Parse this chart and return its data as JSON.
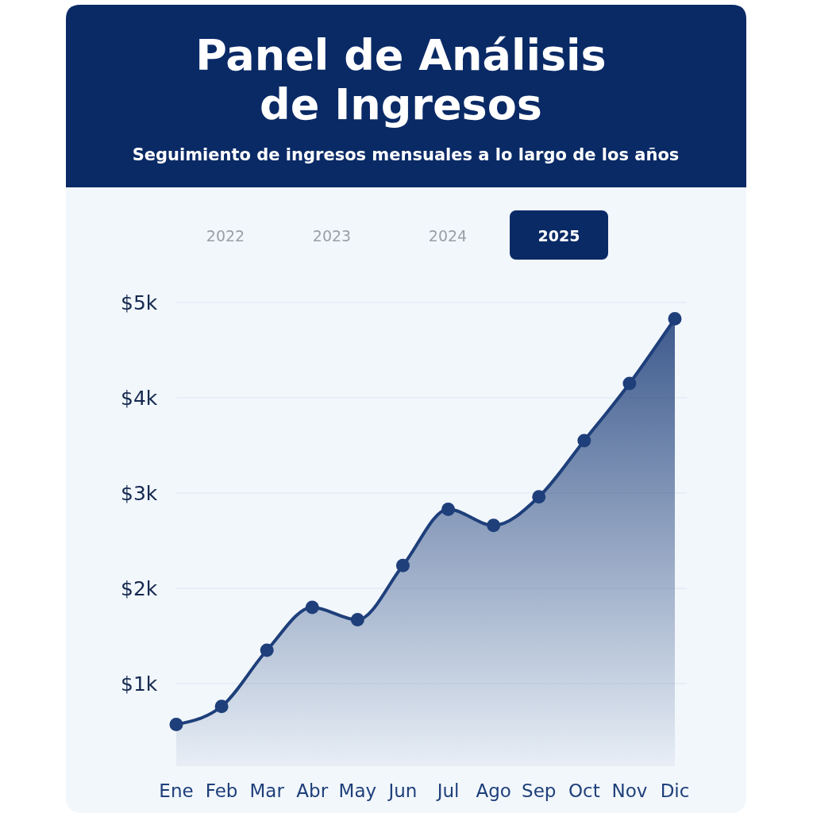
{
  "chart_data": {
    "type": "area",
    "title": "Panel de Análisis de Ingresos",
    "subtitle": "Seguimiento de ingresos mensuales a lo largo de los años",
    "annotations": [
      "2022",
      "2023",
      "2024",
      "2025"
    ],
    "categories": [
      "Ene",
      "Feb",
      "Mar",
      "Abr",
      "May",
      "Jun",
      "Jul",
      "Ago",
      "Sep",
      "Oct",
      "Nov",
      "Dic"
    ],
    "series": [
      {
        "color": "#1e3f7a",
        "values": [
          570,
          760,
          1350,
          1800,
          1670,
          2240,
          2830,
          2660,
          2960,
          3550,
          4150,
          4830
        ]
      }
    ],
    "ylim": [
      0,
      5000
    ],
    "yticks": [
      {
        "value": 1000,
        "label": "$1k"
      },
      {
        "value": 2000,
        "label": "$2k"
      },
      {
        "value": 3000,
        "label": "$3k"
      },
      {
        "value": 4000,
        "label": "$4k"
      },
      {
        "value": 5000,
        "label": "$5k"
      }
    ],
    "grid": "y",
    "marker": "circle"
  }
}
